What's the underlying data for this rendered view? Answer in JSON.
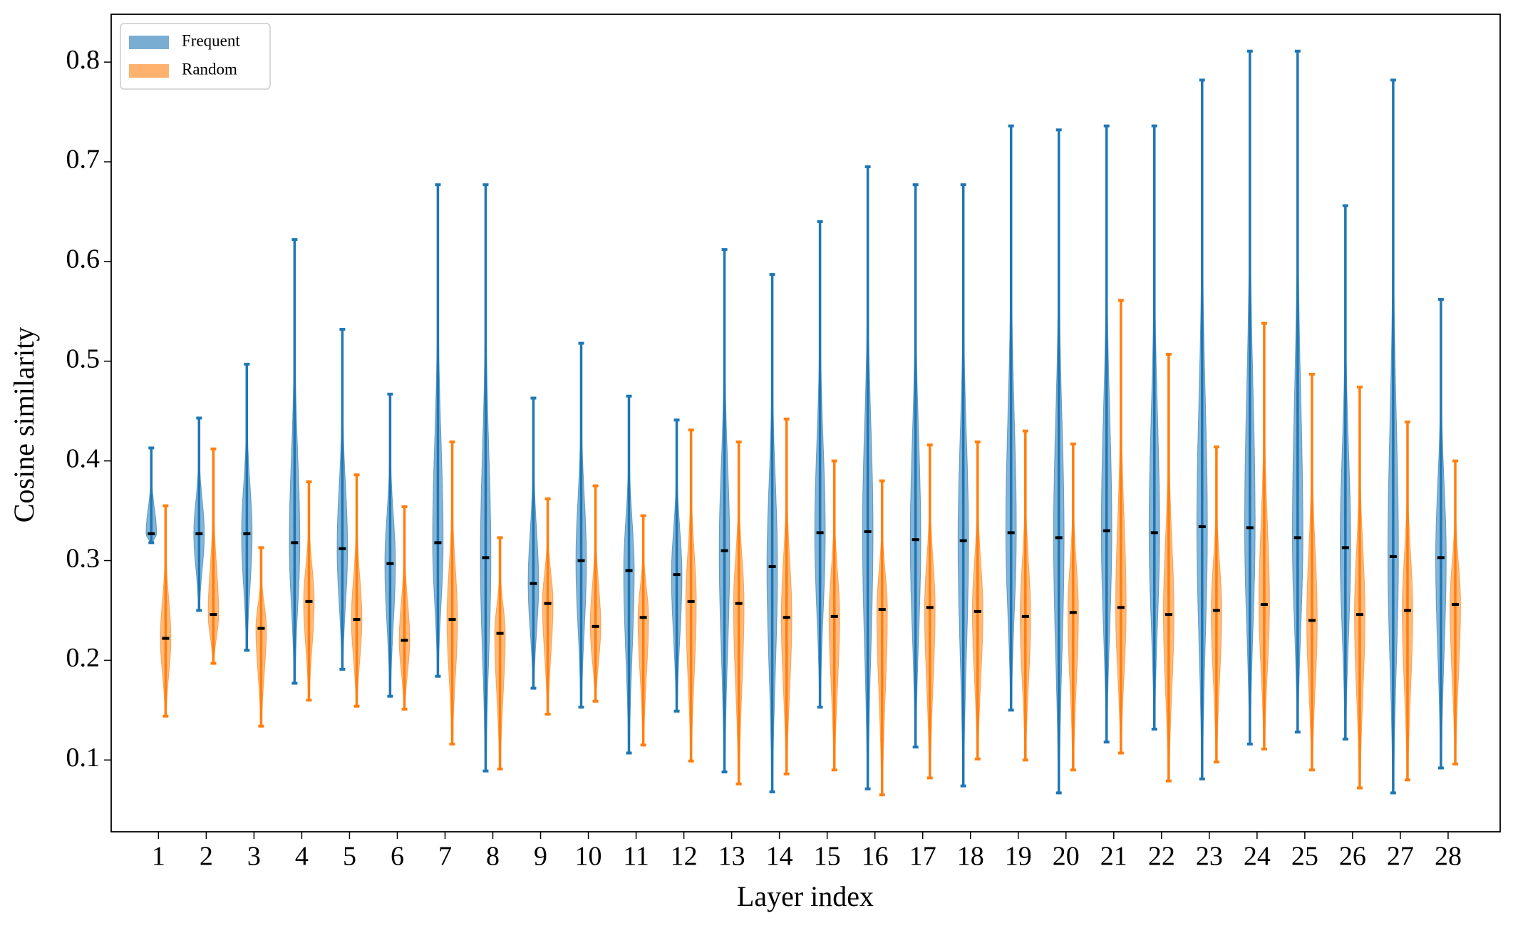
{
  "chart_data": {
    "type": "violin",
    "x_label": "Layer index",
    "y_label": "Cosine similarity",
    "categories": [
      "1",
      "2",
      "3",
      "4",
      "5",
      "6",
      "7",
      "8",
      "9",
      "10",
      "11",
      "12",
      "13",
      "14",
      "15",
      "16",
      "17",
      "18",
      "19",
      "20",
      "21",
      "22",
      "23",
      "24",
      "25",
      "26",
      "27",
      "28"
    ],
    "ylim": [
      0.028,
      0.848
    ],
    "yticks": [
      0.1,
      0.2,
      0.3,
      0.4,
      0.5,
      0.6,
      0.7,
      0.8
    ],
    "legend": "upper left",
    "series": [
      {
        "name": "Frequent",
        "color": "#1f77b4",
        "max": [
          0.413,
          0.443,
          0.497,
          0.622,
          0.532,
          0.467,
          0.677,
          0.677,
          0.463,
          0.518,
          0.465,
          0.441,
          0.612,
          0.587,
          0.64,
          0.695,
          0.677,
          0.677,
          0.736,
          0.732,
          0.736,
          0.736,
          0.782,
          0.811,
          0.811,
          0.656,
          0.782,
          0.562
        ],
        "median": [
          0.327,
          0.327,
          0.327,
          0.318,
          0.312,
          0.297,
          0.318,
          0.303,
          0.277,
          0.3,
          0.29,
          0.286,
          0.31,
          0.294,
          0.328,
          0.329,
          0.321,
          0.32,
          0.328,
          0.323,
          0.33,
          0.328,
          0.334,
          0.333,
          0.323,
          0.313,
          0.304,
          0.303
        ],
        "min": [
          0.318,
          0.25,
          0.21,
          0.177,
          0.191,
          0.164,
          0.184,
          0.089,
          0.172,
          0.153,
          0.107,
          0.149,
          0.088,
          0.068,
          0.153,
          0.071,
          0.113,
          0.074,
          0.15,
          0.067,
          0.118,
          0.131,
          0.081,
          0.116,
          0.128,
          0.121,
          0.067,
          0.092
        ]
      },
      {
        "name": "Random",
        "color": "#ff7f0e",
        "max": [
          0.355,
          0.412,
          0.313,
          0.379,
          0.386,
          0.354,
          0.419,
          0.323,
          0.362,
          0.375,
          0.345,
          0.431,
          0.419,
          0.442,
          0.4,
          0.38,
          0.416,
          0.419,
          0.43,
          0.417,
          0.561,
          0.507,
          0.414,
          0.538,
          0.487,
          0.474,
          0.439,
          0.4
        ],
        "median": [
          0.222,
          0.246,
          0.232,
          0.259,
          0.241,
          0.22,
          0.241,
          0.227,
          0.257,
          0.234,
          0.243,
          0.259,
          0.257,
          0.243,
          0.244,
          0.251,
          0.253,
          0.249,
          0.244,
          0.248,
          0.253,
          0.246,
          0.25,
          0.256,
          0.24,
          0.246,
          0.25,
          0.256
        ],
        "min": [
          0.144,
          0.197,
          0.134,
          0.16,
          0.154,
          0.151,
          0.116,
          0.091,
          0.146,
          0.159,
          0.115,
          0.099,
          0.076,
          0.086,
          0.09,
          0.065,
          0.082,
          0.101,
          0.1,
          0.09,
          0.107,
          0.079,
          0.098,
          0.111,
          0.09,
          0.072,
          0.08,
          0.096
        ]
      }
    ]
  }
}
